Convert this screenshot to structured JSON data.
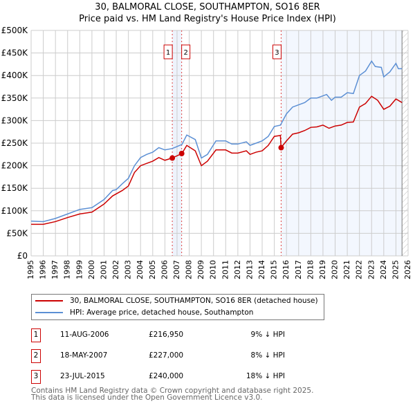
{
  "title": "30, BALMORAL CLOSE, SOUTHAMPTON, SO16 8ER",
  "subtitle": "Price paid vs. HM Land Registry's House Price Index (HPI)",
  "chart_data": {
    "type": "line",
    "title": "30, BALMORAL CLOSE, SOUTHAMPTON, SO16 8ER",
    "subtitle": "Price paid vs. HM Land Registry's House Price Index (HPI)",
    "xlim": [
      1995,
      2026
    ],
    "ylim": [
      0,
      500000
    ],
    "x_ticks": [
      "1995",
      "1996",
      "1997",
      "1998",
      "1999",
      "2000",
      "2001",
      "2002",
      "2003",
      "2004",
      "2005",
      "2006",
      "2007",
      "2008",
      "2009",
      "2010",
      "2011",
      "2012",
      "2013",
      "2014",
      "2015",
      "2016",
      "2017",
      "2018",
      "2019",
      "2020",
      "2021",
      "2022",
      "2023",
      "2024",
      "2025",
      "2026"
    ],
    "y_ticks": [
      {
        "v": 0,
        "label": "£0"
      },
      {
        "v": 50000,
        "label": "£50K"
      },
      {
        "v": 100000,
        "label": "£100K"
      },
      {
        "v": 150000,
        "label": "£150K"
      },
      {
        "v": 200000,
        "label": "£200K"
      },
      {
        "v": 250000,
        "label": "£250K"
      },
      {
        "v": 300000,
        "label": "£300K"
      },
      {
        "v": 350000,
        "label": "£350K"
      },
      {
        "v": 400000,
        "label": "£400K"
      },
      {
        "v": 450000,
        "label": "£450K"
      },
      {
        "v": 500000,
        "label": "£500K"
      }
    ],
    "grid": true,
    "series": [
      {
        "name": "30, BALMORAL CLOSE, SOUTHAMPTON, SO16 8ER (detached house)",
        "color": "#cc0000",
        "x": [
          1995,
          1996,
          1997,
          1998,
          1999,
          2000,
          2001,
          2001.7,
          2002.5,
          2003,
          2003.5,
          2004,
          2004.5,
          2005,
          2005.5,
          2006,
          2006.6,
          2007.4,
          2007.8,
          2008.5,
          2009,
          2009.5,
          2010.2,
          2011,
          2011.5,
          2012,
          2012.7,
          2013,
          2013.5,
          2014,
          2014.5,
          2015,
          2015.5,
          2015.55,
          2016,
          2016.5,
          2017,
          2017.5,
          2018,
          2018.5,
          2019,
          2019.5,
          2020,
          2020.5,
          2021,
          2021.5,
          2022,
          2022.5,
          2023,
          2023.5,
          2024,
          2024.5,
          2025,
          2025.5
        ],
        "y": [
          70000,
          70000,
          76000,
          85000,
          93000,
          97000,
          115000,
          133000,
          145000,
          155000,
          185000,
          200000,
          205000,
          210000,
          218000,
          212000,
          217000,
          227000,
          245000,
          233000,
          200000,
          210000,
          235000,
          235000,
          228000,
          228000,
          233000,
          225000,
          230000,
          233000,
          245000,
          265000,
          267000,
          240000,
          255000,
          270000,
          273000,
          278000,
          285000,
          286000,
          290000,
          283000,
          288000,
          290000,
          296000,
          297000,
          330000,
          338000,
          354000,
          345000,
          325000,
          332000,
          348000,
          340000
        ]
      },
      {
        "name": "HPI: Average price, detached house, Southampton",
        "color": "#5b8fd4",
        "x": [
          1995,
          1996,
          1997,
          1998,
          1999,
          2000,
          2001,
          2001.7,
          2002,
          2002.5,
          2003,
          2003.5,
          2004,
          2004.5,
          2005,
          2005.5,
          2006,
          2006.6,
          2007.4,
          2007.8,
          2008.5,
          2009,
          2009.5,
          2010.2,
          2011,
          2011.5,
          2012,
          2012.7,
          2013,
          2013.5,
          2014,
          2014.5,
          2015,
          2015.5,
          2016,
          2016.5,
          2017,
          2017.5,
          2018,
          2018.5,
          2019,
          2019.3,
          2019.7,
          2020,
          2020.5,
          2021,
          2021.5,
          2022,
          2022.5,
          2023,
          2023.3,
          2023.8,
          2024,
          2024.5,
          2025,
          2025.2,
          2025.5
        ],
        "y": [
          77000,
          76000,
          83000,
          93000,
          103000,
          107000,
          125000,
          145000,
          147000,
          160000,
          172000,
          200000,
          218000,
          225000,
          230000,
          240000,
          235000,
          238000,
          247000,
          268000,
          258000,
          217000,
          225000,
          255000,
          255000,
          248000,
          248000,
          253000,
          245000,
          250000,
          255000,
          265000,
          287000,
          290000,
          315000,
          330000,
          335000,
          340000,
          350000,
          350000,
          355000,
          358000,
          345000,
          352000,
          352000,
          362000,
          360000,
          400000,
          410000,
          432000,
          420000,
          418000,
          397000,
          408000,
          427000,
          415000,
          415000
        ]
      }
    ],
    "sales": [
      {
        "n": "1",
        "x": 2006.61,
        "y": 216950,
        "date": "11-AUG-2006",
        "price": "£216,950",
        "hpi": "9% ↓ HPI"
      },
      {
        "n": "2",
        "x": 2007.38,
        "y": 227000,
        "date": "18-MAY-2007",
        "price": "£227,000",
        "hpi": "8% ↓ HPI"
      },
      {
        "n": "3",
        "x": 2015.56,
        "y": 240000,
        "date": "23-JUL-2015",
        "price": "£240,000",
        "hpi": "18% ↓ HPI"
      }
    ],
    "legend_position": "below"
  },
  "legend": {
    "red": "30, BALMORAL CLOSE, SOUTHAMPTON, SO16 8ER (detached house)",
    "blue": "HPI: Average price, detached house, Southampton"
  },
  "footer": {
    "line1": "Contains HM Land Registry data © Crown copyright and database right 2025.",
    "line2": "This data is licensed under the Open Government Licence v3.0."
  }
}
